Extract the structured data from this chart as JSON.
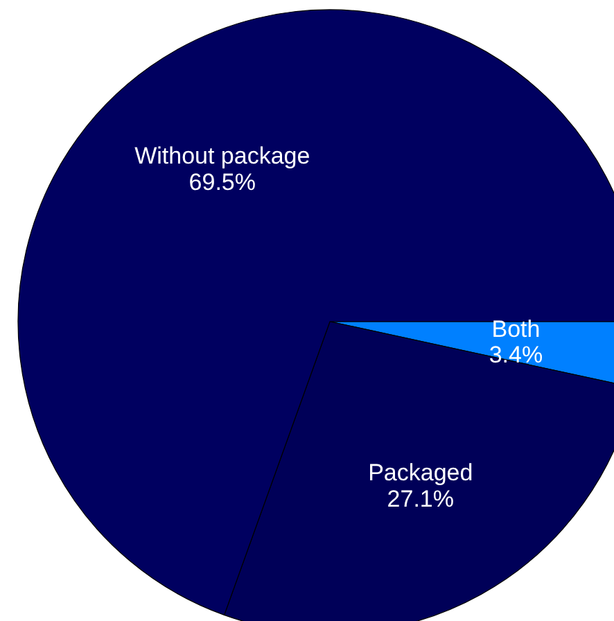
{
  "chart_data": {
    "type": "pie",
    "categories": [
      "Both",
      "Packaged",
      "Without package"
    ],
    "values": [
      3.4,
      27.1,
      69.5
    ],
    "colors": [
      "#0080ff",
      "#000058",
      "#000060"
    ],
    "value_labels": [
      "3.4%",
      "27.1%",
      "69.5%"
    ]
  }
}
